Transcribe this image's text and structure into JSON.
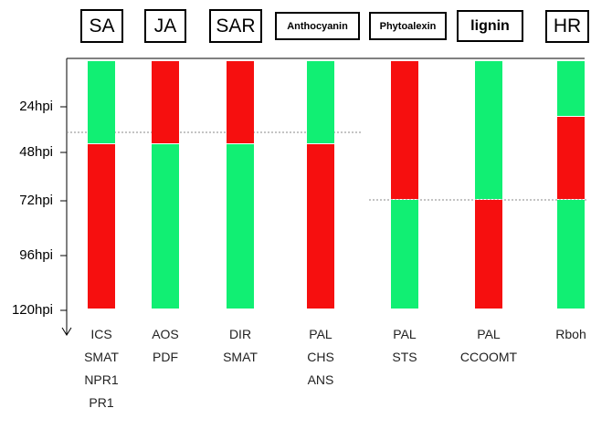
{
  "colors": {
    "up": "#11ef73",
    "down": "#f60f0f",
    "axis": "#000000",
    "reference_line": "#8a8a8a"
  },
  "time_axis": {
    "ticks": [
      "24hpi",
      "48hpi",
      "72hpi",
      "96hpi",
      "120hpi"
    ],
    "tick_hours": [
      24,
      48,
      72,
      96,
      120
    ],
    "range_hours": [
      12,
      120
    ],
    "arrow": "down"
  },
  "reference_lines": [
    {
      "hours": 48,
      "spans_columns": [
        "SA",
        "JA",
        "SAR",
        "Anthocyanin"
      ]
    },
    {
      "hours": 72,
      "spans_columns": [
        "Phytoalexin",
        "lignin",
        "HR"
      ]
    }
  ],
  "columns": [
    {
      "label": "SA",
      "genes": [
        "ICS",
        "SMAT",
        "NPR1",
        "PR1"
      ],
      "segments": [
        {
          "from": 12,
          "to": 48,
          "state": "up"
        },
        {
          "from": 48,
          "to": 120,
          "state": "down"
        }
      ]
    },
    {
      "label": "JA",
      "genes": [
        "AOS",
        "PDF"
      ],
      "segments": [
        {
          "from": 12,
          "to": 48,
          "state": "down"
        },
        {
          "from": 48,
          "to": 120,
          "state": "up"
        }
      ]
    },
    {
      "label": "SAR",
      "genes": [
        "DIR",
        "SMAT"
      ],
      "segments": [
        {
          "from": 12,
          "to": 48,
          "state": "down"
        },
        {
          "from": 48,
          "to": 120,
          "state": "up"
        }
      ]
    },
    {
      "label": "Anthocyanin",
      "genes": [
        "PAL",
        "CHS",
        "ANS"
      ],
      "segments": [
        {
          "from": 12,
          "to": 48,
          "state": "up"
        },
        {
          "from": 48,
          "to": 120,
          "state": "down"
        }
      ]
    },
    {
      "label": "Phytoalexin",
      "genes": [
        "PAL",
        "STS"
      ],
      "segments": [
        {
          "from": 12,
          "to": 72,
          "state": "down"
        },
        {
          "from": 72,
          "to": 120,
          "state": "up"
        }
      ]
    },
    {
      "label": "lignin",
      "genes": [
        "PAL",
        "CCOOMT"
      ],
      "segments": [
        {
          "from": 12,
          "to": 72,
          "state": "up"
        },
        {
          "from": 72,
          "to": 120,
          "state": "down"
        }
      ]
    },
    {
      "label": "HR",
      "genes": [
        "Rboh"
      ],
      "segments": [
        {
          "from": 12,
          "to": 36,
          "state": "up"
        },
        {
          "from": 36,
          "to": 72,
          "state": "down"
        },
        {
          "from": 72,
          "to": 120,
          "state": "up"
        }
      ]
    }
  ]
}
